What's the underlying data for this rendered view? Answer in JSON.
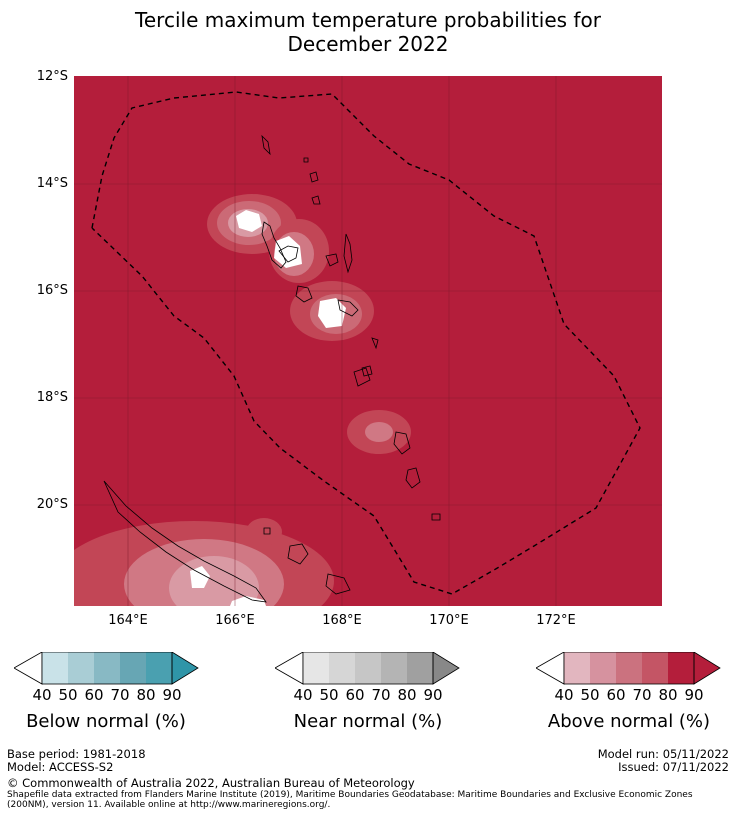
{
  "title_line1": "Tercile maximum temperature probabilities for",
  "title_line2": "December 2022",
  "lat_labels": [
    "12°S",
    "14°S",
    "16°S",
    "18°S",
    "20°S"
  ],
  "lon_labels": [
    "164°E",
    "166°E",
    "168°E",
    "170°E",
    "172°E"
  ],
  "colorbars": [
    {
      "title": "Below normal (%)",
      "ticks": [
        "40",
        "50",
        "60",
        "70",
        "80",
        "90"
      ],
      "colors": [
        "#ffffff",
        "#c9e2e8",
        "#a9cdd5",
        "#88b9c4",
        "#67a6b4",
        "#4aa0b0",
        "#2f95a8"
      ]
    },
    {
      "title": "Near normal (%)",
      "ticks": [
        "40",
        "50",
        "60",
        "70",
        "80",
        "90"
      ],
      "colors": [
        "#ffffff",
        "#e6e6e6",
        "#d6d6d6",
        "#c6c6c6",
        "#b4b4b4",
        "#a0a0a0",
        "#888888"
      ]
    },
    {
      "title": "Above normal (%)",
      "ticks": [
        "40",
        "50",
        "60",
        "70",
        "80",
        "90"
      ],
      "colors": [
        "#ffffff",
        "#e2b6bf",
        "#d6929f",
        "#cb727f",
        "#c45565",
        "#b41e3b",
        "#b41e3b"
      ]
    }
  ],
  "map_fill_color": "#b41e3b",
  "footer": {
    "base_period": "Base period: 1981-2018",
    "model": "Model: ACCESS-S2",
    "model_run": "Model run: 05/11/2022",
    "issued": "Issued: 07/11/2022",
    "copyright": "© Commonwealth of Australia 2022, Australian Bureau of Meteorology",
    "shapefile_1": "Shapefile data extracted from Flanders Marine Institute (2019), Maritime Boundaries Geodatabase: Maritime Boundaries and Exclusive Economic Zones",
    "shapefile_2": "(200NM), version 11. Available online at http://www.marineregions.org/."
  }
}
